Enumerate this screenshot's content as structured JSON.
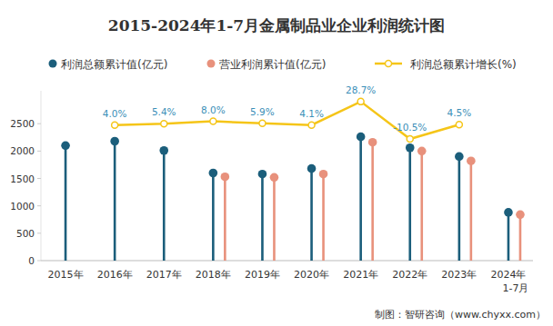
{
  "chart_data": {
    "type": "bar",
    "title": "2015-2024年1-7月金属制品业企业利润统计图",
    "categories": [
      "2015年",
      "2016年",
      "2017年",
      "2018年",
      "2019年",
      "2020年",
      "2021年",
      "2022年",
      "2023年",
      "2024年1-7月"
    ],
    "series": [
      {
        "name": "利润总额累计值(亿元)",
        "color": "#1b5e7b",
        "values": [
          2100,
          2180,
          2010,
          1600,
          1580,
          1680,
          2260,
          2060,
          1900,
          880
        ]
      },
      {
        "name": "营业利润累计值(亿元)",
        "color": "#e8917c",
        "values": [
          null,
          null,
          null,
          1530,
          1520,
          1580,
          2160,
          2000,
          1820,
          840
        ]
      },
      {
        "name": "利润总额累计增长(%)",
        "type": "line",
        "axis": "y2",
        "color": "#f5c518",
        "marker": "circle",
        "values": [
          null,
          4.0,
          5.4,
          8.0,
          5.9,
          4.1,
          28.7,
          -10.5,
          4.5,
          null
        ],
        "value_labels": [
          null,
          "4.0%",
          "5.4%",
          "8.0%",
          "5.9%",
          "4.1%",
          "28.7%",
          "-10.5%",
          "4.5%",
          null
        ]
      }
    ],
    "ylim": [
      0,
      3100
    ],
    "yticks": [
      0,
      500,
      1000,
      1500,
      2000,
      2500
    ],
    "y2lim": [
      -138,
      40
    ],
    "grid": false,
    "legend": "top",
    "data_labels": true,
    "source": "制图：智研咨询（www.chyxx.com）"
  }
}
